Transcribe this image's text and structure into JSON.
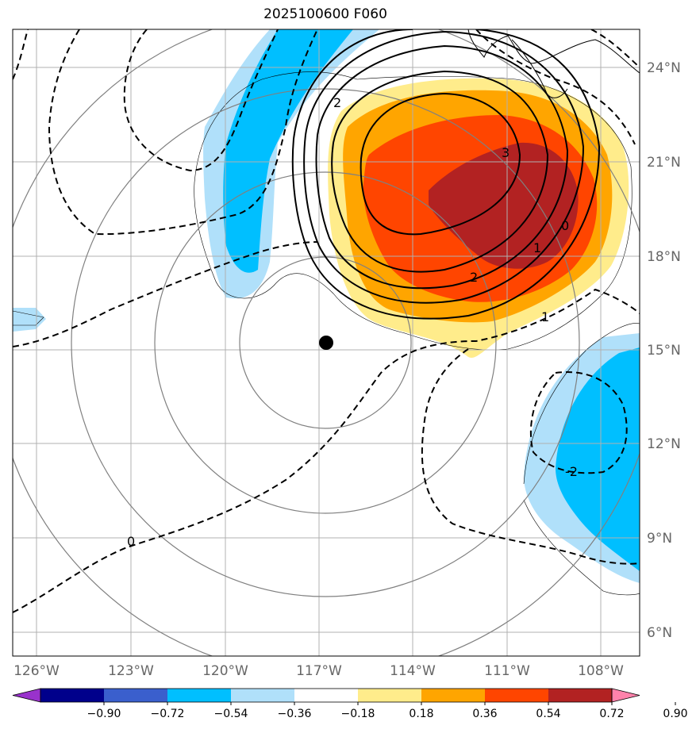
{
  "title": "2025100600 F060",
  "map": {
    "lat_ticks": [
      "24°N",
      "21°N",
      "18°N",
      "15°N",
      "12°N",
      "9°N",
      "6°N"
    ],
    "lon_ticks": [
      "126°W",
      "123°W",
      "120°W",
      "117°W",
      "114°W",
      "111°W",
      "108°W"
    ],
    "storm_center": {
      "lon": "116.8°W",
      "lat": "15.2°N"
    }
  },
  "contour_labels": {
    "zero": "0",
    "one": "1",
    "two": "2",
    "three": "3",
    "neg1": "-1",
    "neg2": "-2"
  },
  "colorbar": {
    "labels": [
      "−0.90",
      "−0.72",
      "−0.54",
      "−0.36",
      "−0.18",
      "0.18",
      "0.36",
      "0.54",
      "0.72",
      "0.90"
    ],
    "colors": [
      "#9932cc",
      "#00008b",
      "#3a5fcd",
      "#00bfff",
      "#b0e0fa",
      "#ffffff",
      "#ffec8b",
      "#ffa500",
      "#ff4500",
      "#b22222",
      "#ff82ab"
    ]
  }
}
